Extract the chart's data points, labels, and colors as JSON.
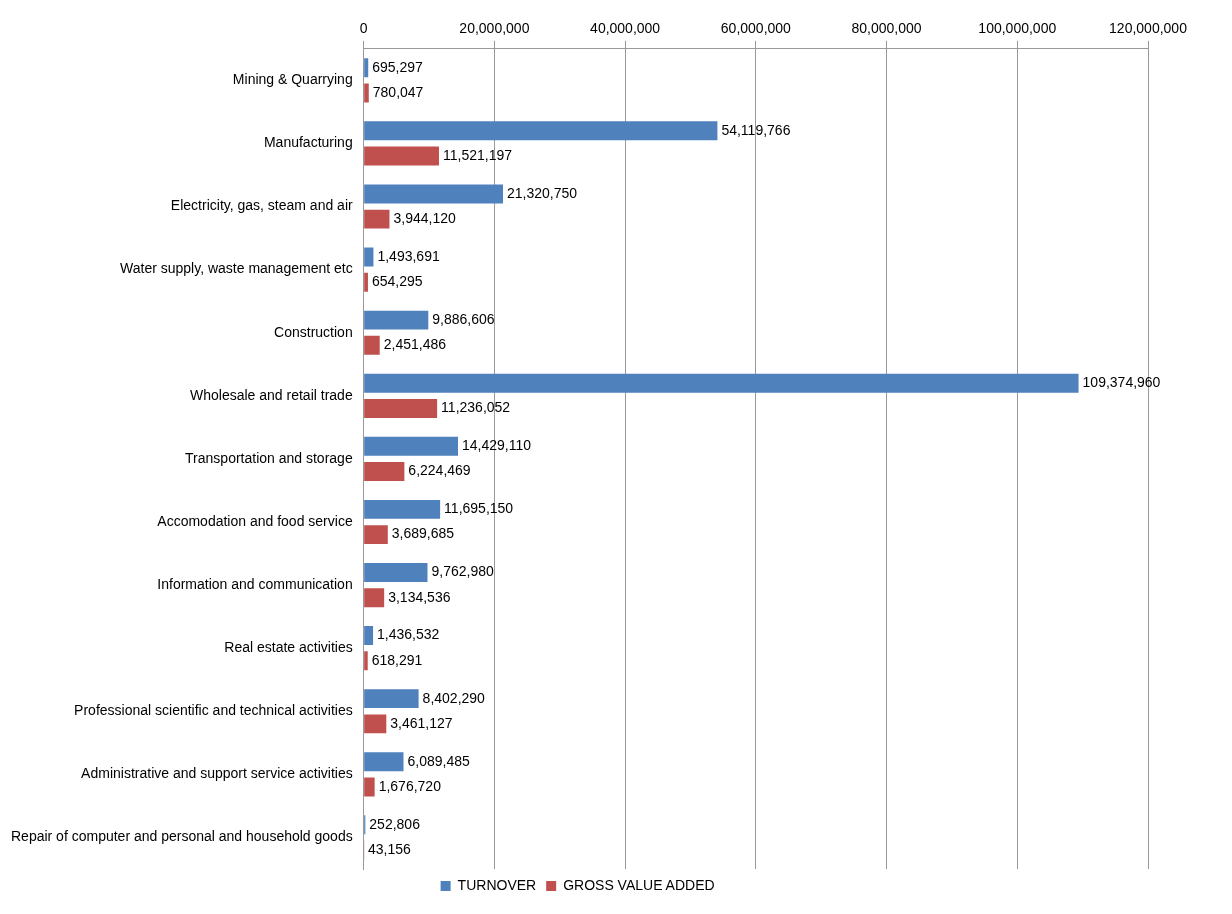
{
  "chart_data": {
    "type": "bar",
    "orientation": "horizontal",
    "categories": [
      "Mining & Quarrying",
      "Manufacturing",
      "Electricity, gas, steam and air",
      "Water supply, waste management etc",
      "Construction",
      "Wholesale and retail trade",
      "Transportation and storage",
      "Accomodation and food service",
      "Information and communication",
      "Real estate activities",
      "Professional scientific and technical activities",
      "Administrative and support service activities",
      "Repair of computer and personal and household goods"
    ],
    "series": [
      {
        "name": "TURNOVER",
        "color": "#4f81bd",
        "values": [
          695297,
          54119766,
          21320750,
          1493691,
          9886606,
          109374960,
          14429110,
          11695150,
          9762980,
          1436532,
          8402290,
          6089485,
          252806
        ],
        "value_labels": [
          "695,297",
          "54,119,766",
          "21,320,750",
          "1,493,691",
          "9,886,606",
          "109,374,960",
          "14,429,110",
          "11,695,150",
          "9,762,980",
          "1,436,532",
          "8,402,290",
          "6,089,485",
          "252,806"
        ]
      },
      {
        "name": "GROSS VALUE ADDED",
        "color": "#c0504d",
        "values": [
          780047,
          11521197,
          3944120,
          654295,
          2451486,
          11236052,
          6224469,
          3689685,
          3134536,
          618291,
          3461127,
          1676720,
          43156
        ],
        "value_labels": [
          "780,047",
          "11,521,197",
          "3,944,120",
          "654,295",
          "2,451,486",
          "11,236,052",
          "6,224,469",
          "3,689,685",
          "3,134,536",
          "618,291",
          "3,461,127",
          "1,676,720",
          "43,156"
        ]
      }
    ],
    "xlim": [
      0,
      120000000
    ],
    "xticks": [
      0,
      {
        "value": 20000000,
        "label": "20,000,000"
      },
      {
        "value": 40000000,
        "label": "40,000,000"
      },
      {
        "value": 60000000,
        "label": "60,000,000"
      },
      {
        "value": 80000000,
        "label": "80,000,000"
      },
      {
        "value": 100000000,
        "label": "100,000,000"
      },
      {
        "value": 120000000,
        "label": "120,000,000"
      }
    ],
    "grid": "x",
    "legend": "bottom"
  }
}
